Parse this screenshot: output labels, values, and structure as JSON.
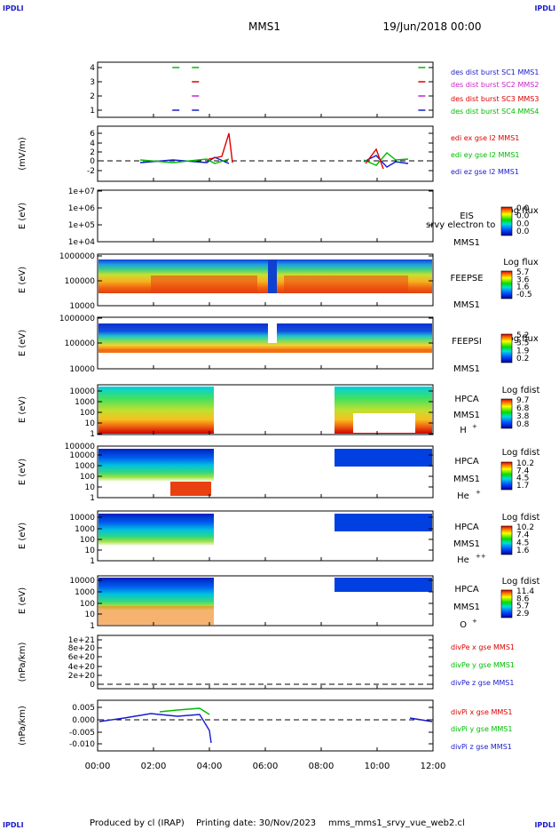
{
  "corner_labels": {
    "tl": "IPDLI",
    "tr": "IPDLI",
    "bl": "IPDLI",
    "br": "IPDLI"
  },
  "header": {
    "spacecraft": "MMS1",
    "date": "19/Jun/2018 00:00"
  },
  "footer": {
    "produced_by": "Produced by cl (IRAP)",
    "printing_date": "Printing date: 30/Nov/2023",
    "script_name": "mms_mms1_srvy_vue_web2.cl"
  },
  "colors": {
    "mms1": "#1a1acc",
    "mms2": "#cc22cc",
    "mms3": "#dd0000",
    "mms4": "#00bb00",
    "ex": "#dd0000",
    "ey": "#00bb00",
    "ez": "#1a1acc"
  },
  "chart_data": {
    "type": "multi-panel time series / spectrogram stack",
    "x": {
      "ticks": [
        "00:00",
        "02:00",
        "04:00",
        "06:00",
        "08:00",
        "10:00",
        "12:00"
      ],
      "range_hours": [
        0,
        12
      ]
    },
    "panels": [
      {
        "id": "burst",
        "type": "scatter",
        "y_ticks": [
          "1",
          "2",
          "3",
          "4"
        ],
        "legend": [
          "des dist burst SC1 MMS1",
          "des dist burst SC2 MMS2",
          "des dist burst SC3 MMS3",
          "des dist burst SC4 MMS4"
        ],
        "series": [
          {
            "name": "des dist burst SC1 MMS1",
            "y": 1,
            "times_h": [
              2.8,
              3.5,
              11.6
            ]
          },
          {
            "name": "des dist burst SC2 MMS2",
            "y": 2,
            "times_h": [
              3.5,
              11.6
            ]
          },
          {
            "name": "des dist burst SC3 MMS3",
            "y": 3,
            "times_h": [
              3.5,
              11.6
            ]
          },
          {
            "name": "des dist burst SC4 MMS4",
            "y": 4,
            "times_h": [
              2.8,
              3.5,
              11.6
            ]
          }
        ]
      },
      {
        "id": "edi",
        "type": "line",
        "ylabel": "(mV/m)",
        "y_ticks": [
          "-2",
          "0",
          "2",
          "4",
          "6"
        ],
        "ylim": [
          -3,
          7
        ],
        "legend": [
          "edi ex gse l2 MMS1",
          "edi ey gse l2 MMS1",
          "edi ez gse l2 MMS1"
        ]
      },
      {
        "id": "eis",
        "type": "heatmap",
        "ylabel": "E (eV)",
        "y_ticks": [
          "1e+04",
          "1e+05",
          "1e+06",
          "1e+07"
        ],
        "labels": [
          "EIS",
          "MMS1"
        ],
        "overlap_text": "srvy electron to",
        "colorbar_title": "Log flux",
        "colorbar_ticks": [
          "0.0",
          "0.0",
          "0.0",
          "0.0"
        ]
      },
      {
        "id": "feepse",
        "type": "heatmap",
        "ylabel": "E (eV)",
        "y_ticks": [
          "10000",
          "100000",
          "1000000"
        ],
        "labels": [
          "FEEPSE",
          "MMS1"
        ],
        "colorbar_title": "Log flux",
        "colorbar_ticks": [
          "5.7",
          "3.6",
          "1.6",
          "-0.5"
        ]
      },
      {
        "id": "feepsi",
        "type": "heatmap",
        "ylabel": "E (eV)",
        "y_ticks": [
          "10000",
          "100000",
          "1000000"
        ],
        "labels": [
          "FEEPSI",
          "MMS1"
        ],
        "colorbar_title": "Log flux",
        "colorbar_ticks": [
          "5.2",
          "3.5",
          "1.9",
          "0.2"
        ]
      },
      {
        "id": "hpca_h",
        "type": "heatmap",
        "ylabel": "E (eV)",
        "y_ticks": [
          "1",
          "10",
          "100",
          "1000",
          "10000"
        ],
        "labels": [
          "HPCA",
          "MMS1",
          "H",
          "+"
        ],
        "colorbar_title": "Log fdist",
        "colorbar_ticks": [
          "9.7",
          "6.8",
          "3.8",
          "0.8"
        ]
      },
      {
        "id": "hpca_he1",
        "type": "heatmap",
        "ylabel": "E (eV)",
        "y_ticks": [
          "1",
          "10",
          "100",
          "1000",
          "10000",
          "100000"
        ],
        "labels": [
          "HPCA",
          "MMS1",
          "He",
          "+"
        ],
        "colorbar_title": "Log fdist",
        "colorbar_ticks": [
          "10.2",
          "7.4",
          "4.5",
          "1.7"
        ]
      },
      {
        "id": "hpca_he2",
        "type": "heatmap",
        "ylabel": "E (eV)",
        "y_ticks": [
          "1",
          "10",
          "100",
          "1000",
          "10000"
        ],
        "labels": [
          "HPCA",
          "MMS1",
          "He",
          "++"
        ],
        "colorbar_title": "Log fdist",
        "colorbar_ticks": [
          "10.2",
          "7.4",
          "4.5",
          "1.6"
        ]
      },
      {
        "id": "hpca_o",
        "type": "heatmap",
        "ylabel": "E (eV)",
        "y_ticks": [
          "1",
          "10",
          "100",
          "1000",
          "10000"
        ],
        "labels": [
          "HPCA",
          "MMS1",
          "O",
          "+"
        ],
        "colorbar_title": "Log fdist",
        "colorbar_ticks": [
          "11.4",
          "8.6",
          "5.7",
          "2.9"
        ]
      },
      {
        "id": "divpe",
        "type": "line",
        "ylabel": "(nPa/km)",
        "y_ticks": [
          "0",
          "2e+20",
          "4e+20",
          "6e+20",
          "8e+20",
          "1e+21"
        ],
        "ylim": [
          0,
          1e+21
        ],
        "legend": [
          "divPe x gse MMS1",
          "divPe y gse MMS1",
          "divPe z gse MMS1"
        ]
      },
      {
        "id": "divpi",
        "type": "line",
        "ylabel": "(nPa/km)",
        "y_ticks": [
          "-0.010",
          "-0.005",
          "0.000",
          "0.005"
        ],
        "ylim": [
          -0.0135,
          0.0075
        ],
        "legend": [
          "divPi x gse MMS1",
          "divPi y gse MMS1",
          "divPi z gse MMS1"
        ]
      }
    ]
  }
}
